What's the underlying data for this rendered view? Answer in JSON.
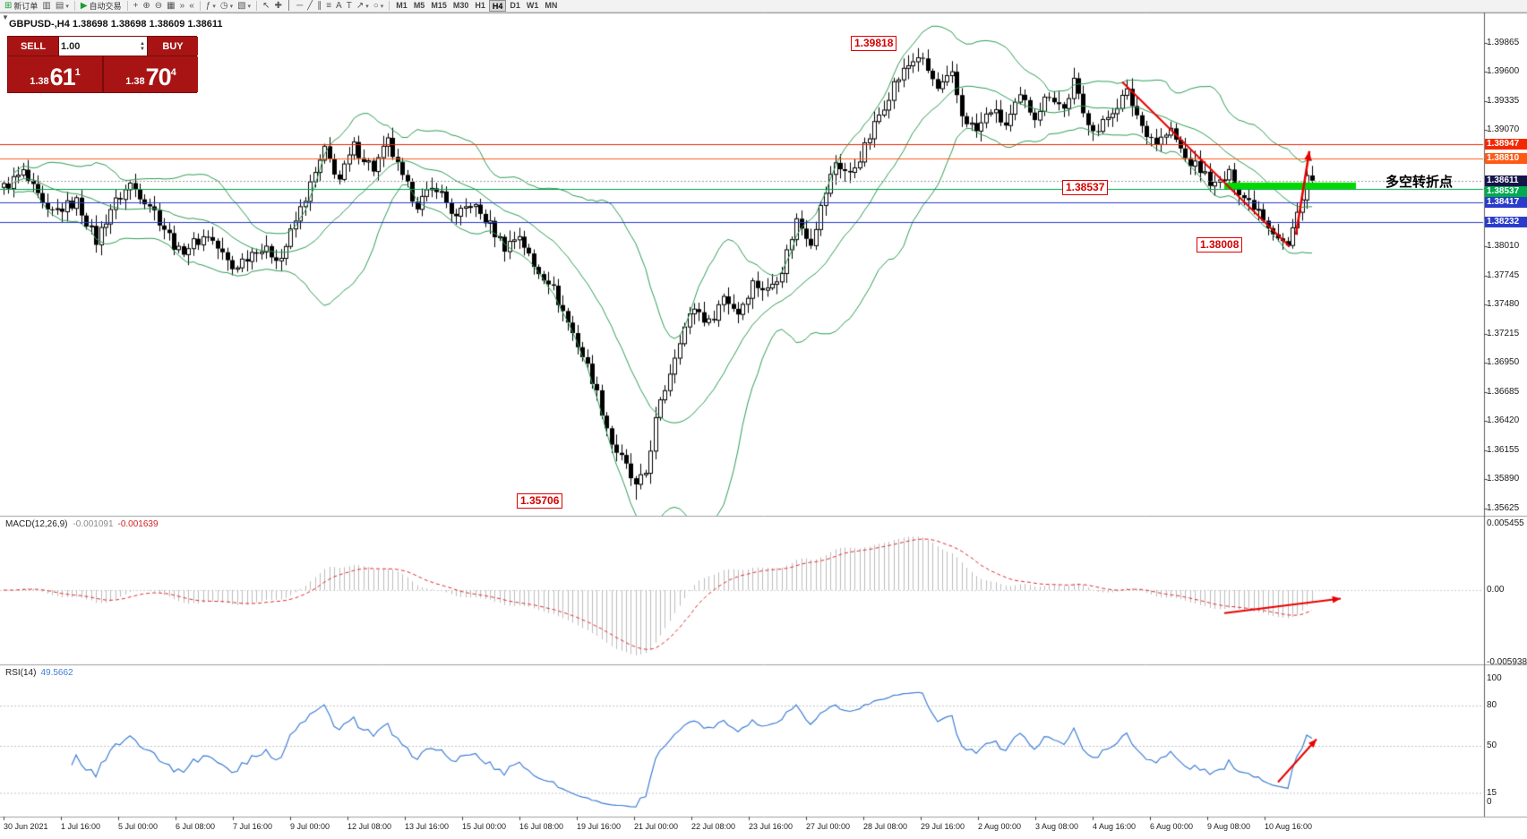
{
  "toolbar": {
    "items": [
      {
        "name": "new-order",
        "glyph": "⊞",
        "color": "#1a9e2f",
        "label": "新订单"
      },
      {
        "name": "new-chart",
        "glyph": "▥"
      },
      {
        "name": "profiles",
        "glyph": "▤",
        "dd": true
      },
      {
        "sep": true
      },
      {
        "name": "auto-trading",
        "glyph": "▶",
        "color": "#1a9e2f",
        "label": "自动交易"
      },
      {
        "sep": true
      },
      {
        "name": "crosshair-mode",
        "glyph": "+"
      },
      {
        "name": "zoom-in",
        "glyph": "⊕"
      },
      {
        "name": "zoom-out",
        "glyph": "⊖"
      },
      {
        "name": "tile-windows",
        "glyph": "▦"
      },
      {
        "name": "auto-scroll",
        "glyph": "»"
      },
      {
        "name": "chart-shift",
        "glyph": "«"
      },
      {
        "sep": true
      },
      {
        "name": "indicators",
        "glyph": "ƒ",
        "dd": true
      },
      {
        "name": "periods",
        "glyph": "◷",
        "dd": true
      },
      {
        "name": "templates",
        "glyph": "▧",
        "dd": true
      },
      {
        "sep": true
      },
      {
        "name": "cursor",
        "glyph": "↖"
      },
      {
        "name": "crosshair-tool",
        "glyph": "✚"
      },
      {
        "name": "vertical-line-tool",
        "glyph": "│"
      },
      {
        "name": "horizontal-line-tool",
        "glyph": "─"
      },
      {
        "name": "trendline-tool",
        "glyph": "╱"
      },
      {
        "name": "channel-tool",
        "glyph": "∥"
      },
      {
        "name": "fibonacci-tool",
        "glyph": "≡"
      },
      {
        "name": "text-tool",
        "glyph": "A"
      },
      {
        "name": "label-tool",
        "glyph": "T"
      },
      {
        "name": "arrow-tool",
        "glyph": "↗",
        "dd": true
      },
      {
        "name": "shapes-tool",
        "glyph": "○",
        "dd": true
      },
      {
        "sep": true
      }
    ],
    "timeframes": [
      "M1",
      "M5",
      "M15",
      "M30",
      "H1",
      "H4",
      "D1",
      "W1",
      "MN"
    ],
    "active_timeframe": "H4"
  },
  "chart_header": {
    "symbol": "GBPUSD-,H4",
    "ohlc": "1.38698 1.38698 1.38609 1.38611"
  },
  "trade_panel": {
    "sell_label": "SELL",
    "buy_label": "BUY",
    "volume": "1.00",
    "sell_price_small": "1.38",
    "sell_price_big": "61",
    "sell_price_sup": "1",
    "buy_price_small": "1.38",
    "buy_price_big": "70",
    "buy_price_sup": "4",
    "color": "#a81414"
  },
  "chart_data": {
    "type": "candlestick",
    "symbol": "GBPUSD",
    "timeframe": "H4",
    "bars": 270,
    "ohlc_display": {
      "open": "1.38698",
      "high": "1.38698",
      "low": "1.38609",
      "close": "1.38611"
    },
    "price_axis": {
      "top": 1.39865,
      "step": 0.00265,
      "count": 17
    },
    "price_anchors": [
      [
        0,
        1.3855
      ],
      [
        4,
        1.3868
      ],
      [
        9,
        1.383
      ],
      [
        15,
        1.3842
      ],
      [
        19,
        1.3806
      ],
      [
        22,
        1.3836
      ],
      [
        26,
        1.3858
      ],
      [
        30,
        1.384
      ],
      [
        36,
        1.3796
      ],
      [
        42,
        1.3812
      ],
      [
        47,
        1.3781
      ],
      [
        52,
        1.38
      ],
      [
        57,
        1.3791
      ],
      [
        62,
        1.3846
      ],
      [
        66,
        1.3888
      ],
      [
        69,
        1.3862
      ],
      [
        72,
        1.3892
      ],
      [
        76,
        1.3872
      ],
      [
        79,
        1.3896
      ],
      [
        82,
        1.3862
      ],
      [
        85,
        1.384
      ],
      [
        89,
        1.3856
      ],
      [
        93,
        1.3826
      ],
      [
        96,
        1.3841
      ],
      [
        100,
        1.382
      ],
      [
        103,
        1.3801
      ],
      [
        106,
        1.3812
      ],
      [
        109,
        1.3782
      ],
      [
        112,
        1.3771
      ],
      [
        115,
        1.3742
      ],
      [
        118,
        1.3712
      ],
      [
        121,
        1.3681
      ],
      [
        123,
        1.3652
      ],
      [
        125,
        1.3622
      ],
      [
        128,
        1.36
      ],
      [
        130,
        1.3581
      ],
      [
        132,
        1.3595
      ],
      [
        134,
        1.3642
      ],
      [
        136,
        1.3672
      ],
      [
        139,
        1.3718
      ],
      [
        142,
        1.3746
      ],
      [
        145,
        1.3731
      ],
      [
        148,
        1.3756
      ],
      [
        151,
        1.3741
      ],
      [
        154,
        1.3768
      ],
      [
        157,
        1.3761
      ],
      [
        160,
        1.3781
      ],
      [
        163,
        1.3825
      ],
      [
        166,
        1.3806
      ],
      [
        169,
        1.3851
      ],
      [
        171,
        1.3878
      ],
      [
        174,
        1.3866
      ],
      [
        177,
        1.3891
      ],
      [
        180,
        1.3921
      ],
      [
        183,
        1.3949
      ],
      [
        186,
        1.3966
      ],
      [
        188,
        1.3975
      ],
      [
        190,
        1.3961
      ],
      [
        192,
        1.3944
      ],
      [
        195,
        1.3956
      ],
      [
        197,
        1.3921
      ],
      [
        200,
        1.3906
      ],
      [
        203,
        1.3926
      ],
      [
        206,
        1.3911
      ],
      [
        209,
        1.3936
      ],
      [
        212,
        1.3921
      ],
      [
        215,
        1.3941
      ],
      [
        218,
        1.3926
      ],
      [
        220,
        1.3951
      ],
      [
        222,
        1.3921
      ],
      [
        225,
        1.3906
      ],
      [
        228,
        1.3926
      ],
      [
        231,
        1.3941
      ],
      [
        234,
        1.3911
      ],
      [
        237,
        1.3896
      ],
      [
        240,
        1.3906
      ],
      [
        243,
        1.3881
      ],
      [
        246,
        1.3871
      ],
      [
        249,
        1.3856
      ],
      [
        252,
        1.3866
      ],
      [
        255,
        1.3846
      ],
      [
        258,
        1.3836
      ],
      [
        260,
        1.3821
      ],
      [
        262,
        1.3811
      ],
      [
        264,
        1.3801
      ],
      [
        266,
        1.3831
      ],
      [
        268,
        1.3866
      ],
      [
        269,
        1.38611
      ]
    ],
    "key_points": {
      "high": {
        "bar": 188,
        "price": 1.39818
      },
      "low": {
        "bar": 130,
        "price": 1.35706
      },
      "swing_low": {
        "bar": 264,
        "price": 1.38008
      },
      "current": 1.38611
    },
    "bollinger": {
      "period": 20,
      "deviation": 2,
      "color": "#2f9e55"
    },
    "hlines": [
      {
        "price": 1.38947,
        "color": "#f42400",
        "style": "solid"
      },
      {
        "price": 1.3881,
        "color": "#ff5a14",
        "style": "solid"
      },
      {
        "price": 1.38611,
        "color": "#9a9a9a",
        "style": "dot"
      },
      {
        "price": 1.38537,
        "color": "#00a44a",
        "style": "solid"
      },
      {
        "price": 1.38417,
        "color": "#2a3ccc",
        "style": "solid"
      },
      {
        "price": 1.38232,
        "color": "#2a3ccc",
        "style": "solid"
      }
    ],
    "drawings": {
      "trendline": {
        "from": [
          230,
          1.3951
        ],
        "to": [
          264.5,
          1.3801
        ],
        "color": "#e80000",
        "width": 2
      },
      "price_arrow": {
        "from": [
          265.8,
          1.3812
        ],
        "to": [
          268.6,
          1.3888
        ],
        "color": "#e80000",
        "width": 2.5
      },
      "pivot_zone": {
        "from_bar": 251,
        "to_bar": 278,
        "price": 1.38565,
        "color": "#00d800",
        "thickness": 7
      },
      "macd_arrow": {
        "from_bar": 251,
        "from_val": -0.0019,
        "to_bar": 275,
        "to_val": -0.0007,
        "color": "#e80000",
        "width": 2
      },
      "rsi_arrow": {
        "from_bar": 262,
        "from_val": 23,
        "to_bar": 270,
        "to_val": 55,
        "color": "#e80000",
        "width": 2
      }
    }
  },
  "indicators": {
    "macd": {
      "label": "MACD(12,26,9)",
      "value_main": "-0.001091",
      "value_signal": "-0.001639",
      "scale": [
        {
          "text": "0.005455",
          "value": 0.005455
        },
        {
          "text": "0.00",
          "value": 0
        },
        {
          "text": "-0.005938",
          "value": -0.005938
        }
      ],
      "hist_color": "#bdbdbd",
      "signal_color": "#e03030"
    },
    "rsi": {
      "label": "RSI(14)",
      "value": "49.5662",
      "scale": [
        {
          "text": "100",
          "value": 100
        },
        {
          "text": "80",
          "value": 80
        },
        {
          "text": "50",
          "value": 50
        },
        {
          "text": "15",
          "value": 15
        },
        {
          "text": "0",
          "value": 0
        }
      ],
      "levels": [
        80,
        50,
        15
      ],
      "color": "#3f7fd6"
    }
  },
  "annotations": {
    "high_label": "1.39818",
    "pivot_label": "1.38537",
    "swing_low_label": "1.38008",
    "low_label": "1.35706",
    "pivot_text": "多空转折点",
    "pivot_text_color": "#00b050"
  },
  "price_scale": {
    "ticks": [
      "1.39865",
      "1.39600",
      "1.39335",
      "1.39070",
      "1.38805",
      "1.38540",
      "1.38275",
      "1.38010",
      "1.37745",
      "1.37480",
      "1.37215",
      "1.36950",
      "1.36685",
      "1.36420",
      "1.36155",
      "1.35890",
      "1.35625"
    ],
    "colored": [
      {
        "text": "1.38947",
        "price": 1.38947,
        "bg": "#f42800"
      },
      {
        "text": "1.38810",
        "price": 1.3881,
        "bg": "#ff5a14"
      },
      {
        "text": "1.38611",
        "price": 1.38611,
        "bg": "#15154a"
      },
      {
        "text": "1.38537",
        "price": 1.38537,
        "bg": "#00aa4e"
      },
      {
        "text": "1.38417",
        "price": 1.38417,
        "bg": "#2a3ccc"
      },
      {
        "text": "1.38232",
        "price": 1.38232,
        "bg": "#2a3ccc"
      }
    ]
  },
  "time_axis": {
    "labels": [
      "30 Jun 2021",
      "1 Jul 16:00",
      "5 Jul 00:00",
      "6 Jul 08:00",
      "7 Jul 16:00",
      "9 Jul 00:00",
      "12 Jul 08:00",
      "13 Jul 16:00",
      "15 Jul 00:00",
      "16 Jul 08:00",
      "19 Jul 16:00",
      "21 Jul 00:00",
      "22 Jul 08:00",
      "23 Jul 16:00",
      "27 Jul 00:00",
      "28 Jul 08:00",
      "29 Jul 16:00",
      "2 Aug 00:00",
      "3 Aug 08:00",
      "4 Aug 16:00",
      "6 Aug 00:00",
      "9 Aug 08:00",
      "10 Aug 16:00"
    ]
  }
}
